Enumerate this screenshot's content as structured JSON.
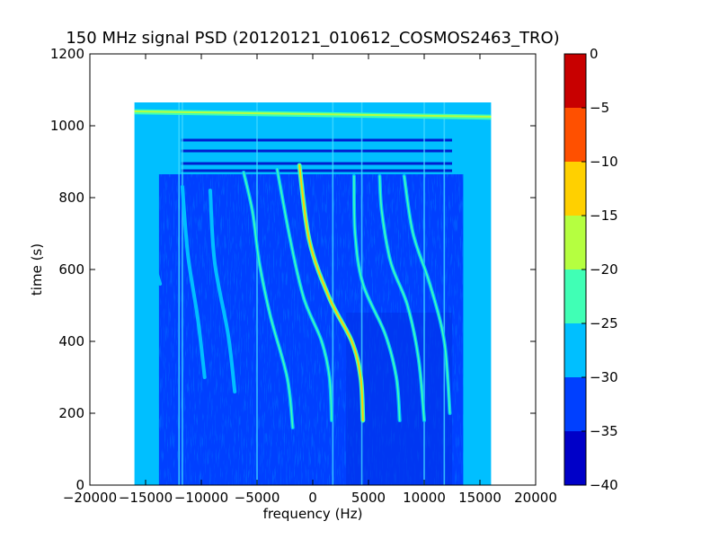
{
  "chart_data": {
    "type": "heatmap",
    "title": "150 MHz signal PSD (20120121_010612_COSMOS2463_TRO)",
    "xlabel": "frequency (Hz)",
    "ylabel": "time (s)",
    "xlim": [
      -20000,
      20000
    ],
    "ylim": [
      0,
      1200
    ],
    "xticks": [
      -20000,
      -15000,
      -10000,
      -5000,
      0,
      5000,
      10000,
      15000,
      20000
    ],
    "yticks": [
      0,
      200,
      400,
      600,
      800,
      1000,
      1200
    ],
    "data_extent": {
      "x": [
        -16000,
        16000
      ],
      "y": [
        0,
        1065
      ]
    },
    "colorbar": {
      "levels": [
        -40,
        -35,
        -30,
        -25,
        -20,
        -15,
        -10,
        -5,
        0
      ],
      "tick_labels": [
        "0",
        "−5",
        "−10",
        "−15",
        "−20",
        "−25",
        "−30",
        "−35",
        "−40"
      ],
      "colors": [
        "#0000c8",
        "#0040ff",
        "#00bfff",
        "#40ffb5",
        "#b5ff40",
        "#ffd000",
        "#ff5000",
        "#c80000"
      ]
    },
    "background_level_band": "-35 to -30",
    "noise_level_band": "-30 to -25",
    "doppler_tracks": [
      {
        "name": "main",
        "band": "-20 to -10",
        "points": [
          [
            4500,
            180
          ],
          [
            4300,
            300
          ],
          [
            3500,
            400
          ],
          [
            1500,
            520
          ],
          [
            -300,
            680
          ],
          [
            -1200,
            890
          ]
        ]
      },
      {
        "band": "-25 to -20",
        "points": [
          [
            -1800,
            160
          ],
          [
            -2300,
            300
          ],
          [
            -3800,
            470
          ],
          [
            -4800,
            620
          ],
          [
            -5400,
            760
          ],
          [
            -6200,
            870
          ]
        ]
      },
      {
        "band": "-25 to -20",
        "points": [
          [
            1700,
            180
          ],
          [
            1500,
            300
          ],
          [
            800,
            400
          ],
          [
            -800,
            520
          ],
          [
            -2000,
            680
          ],
          [
            -3200,
            880
          ]
        ]
      },
      {
        "band": "-25 to -20",
        "points": [
          [
            7800,
            180
          ],
          [
            7500,
            300
          ],
          [
            6500,
            420
          ],
          [
            4500,
            560
          ],
          [
            3800,
            700
          ],
          [
            3700,
            860
          ]
        ]
      },
      {
        "band": "-25 to -20",
        "points": [
          [
            10000,
            180
          ],
          [
            9500,
            350
          ],
          [
            8500,
            500
          ],
          [
            7000,
            620
          ],
          [
            6200,
            760
          ],
          [
            6000,
            860
          ]
        ]
      },
      {
        "band": "-25 to -20",
        "points": [
          [
            12300,
            200
          ],
          [
            11800,
            400
          ],
          [
            10500,
            560
          ],
          [
            9000,
            700
          ],
          [
            8200,
            860
          ]
        ]
      },
      {
        "band": "-30 to -25",
        "points": [
          [
            -7000,
            260
          ],
          [
            -7600,
            420
          ],
          [
            -8800,
            620
          ],
          [
            -9200,
            820
          ]
        ]
      },
      {
        "band": "-30 to -25",
        "points": [
          [
            -9700,
            300
          ],
          [
            -10300,
            460
          ],
          [
            -11200,
            640
          ],
          [
            -11700,
            830
          ]
        ]
      },
      {
        "band": "-30 to -25",
        "points": [
          [
            -13700,
            560
          ],
          [
            -14500,
            640
          ]
        ]
      }
    ],
    "vertical_lines_hz": [
      -12000,
      -11700,
      -5000,
      1800,
      4400,
      10000,
      11800
    ],
    "horizontal_band": {
      "band": "-25 to -20",
      "x": [
        -16000,
        16000
      ],
      "y_left": 1040,
      "y_right": 1025
    }
  }
}
